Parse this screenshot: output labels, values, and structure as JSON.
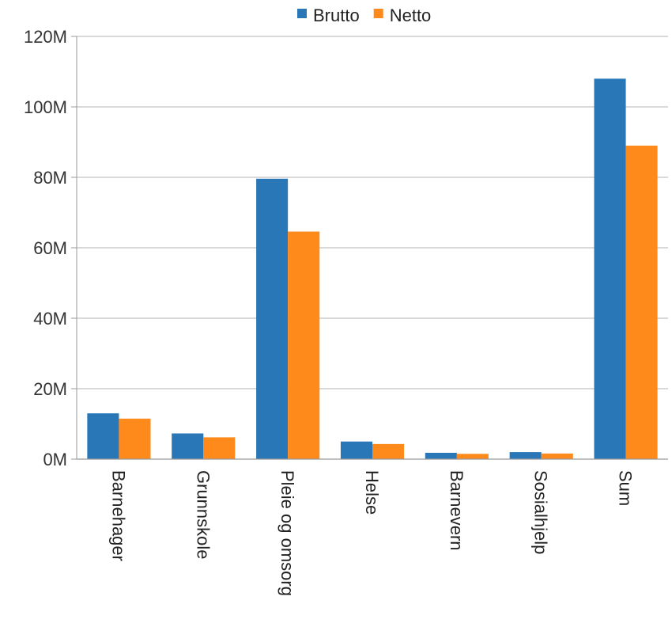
{
  "chart_data": {
    "type": "bar",
    "categories": [
      "Barnehager",
      "Grunnskole",
      "Pleie og omsorg",
      "Helse",
      "Barnevern",
      "Sosialhjelp",
      "Sum"
    ],
    "series": [
      {
        "name": "Brutto",
        "color": "#2a77b8",
        "values": [
          13000000,
          7300000,
          79600000,
          5000000,
          1800000,
          2000000,
          108000000
        ]
      },
      {
        "name": "Netto",
        "color": "#fd8a1a",
        "values": [
          11500000,
          6200000,
          64600000,
          4300000,
          1500000,
          1600000,
          89000000
        ]
      }
    ],
    "ylim": [
      0,
      120000000
    ],
    "yticks": [
      0,
      20000000,
      40000000,
      60000000,
      80000000,
      100000000,
      120000000
    ],
    "ytick_labels": [
      "0M",
      "20M",
      "40M",
      "60M",
      "80M",
      "100M",
      "120M"
    ],
    "grid": true,
    "legend": "top-center",
    "title": "",
    "xlabel": "",
    "ylabel": ""
  }
}
